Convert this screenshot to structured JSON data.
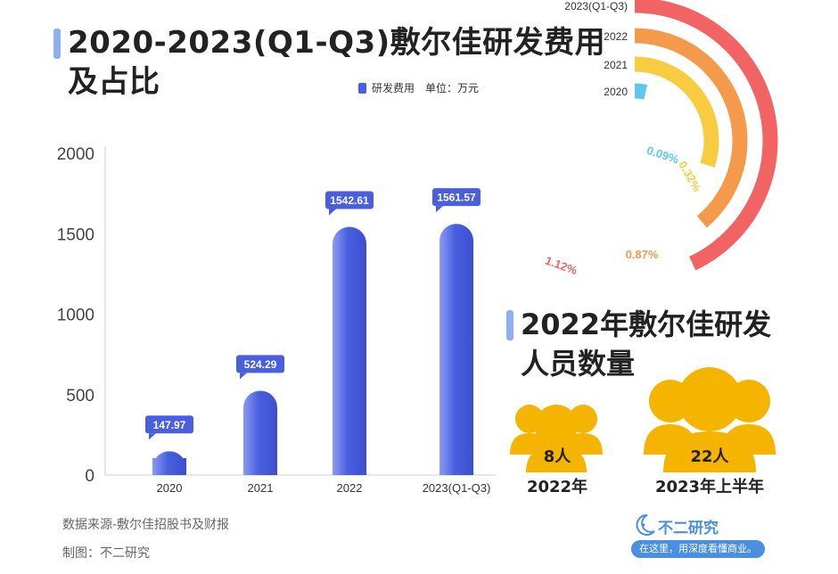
{
  "title": {
    "line1": "2020-2023(Q1-Q3)敷尔佳研发费用",
    "line2": "及占比"
  },
  "legend": {
    "label": "研发费用",
    "unit": "单位：万元"
  },
  "chart_data": [
    {
      "type": "bar",
      "categories": [
        "2020",
        "2021",
        "2022",
        "2023(Q1-Q3)"
      ],
      "values": [
        147.97,
        524.29,
        1542.61,
        1561.57
      ],
      "data_labels": [
        "147.97",
        "524.29",
        "1542.61",
        "1561.57"
      ],
      "ylim": [
        0,
        2000
      ],
      "yticks": [
        0,
        500,
        1000,
        1500,
        2000
      ],
      "color": "#4a5fe0",
      "legend": "研发费用",
      "unit": "单位：万元"
    },
    {
      "type": "pie",
      "categories": [
        "2023(Q1-Q3)",
        "2022",
        "2021",
        "2020"
      ],
      "values": [
        1.12,
        0.87,
        0.32,
        0.09
      ],
      "data_labels": [
        "1.12%",
        "0.87%",
        "0.32%",
        "0.09%"
      ],
      "colors": [
        "#f26363",
        "#f59a4a",
        "#f7cc40",
        "#5fc6ee"
      ]
    }
  ],
  "section2": {
    "title_line1": "2022年敷尔佳研发",
    "title_line2": "人员数量",
    "groups": [
      {
        "count": "8人",
        "label": "2022年",
        "color": "#f5b400"
      },
      {
        "count": "22人",
        "label": "2023年上半年",
        "color": "#f5b400"
      }
    ]
  },
  "footer": {
    "source": "数据来源-敷尔佳招股书及财报",
    "maker": "制图：不二研究"
  },
  "brand": {
    "name": "不二研究",
    "slogan": "在这里，用深度看懂商业。",
    "icon": "moon-face-icon"
  }
}
